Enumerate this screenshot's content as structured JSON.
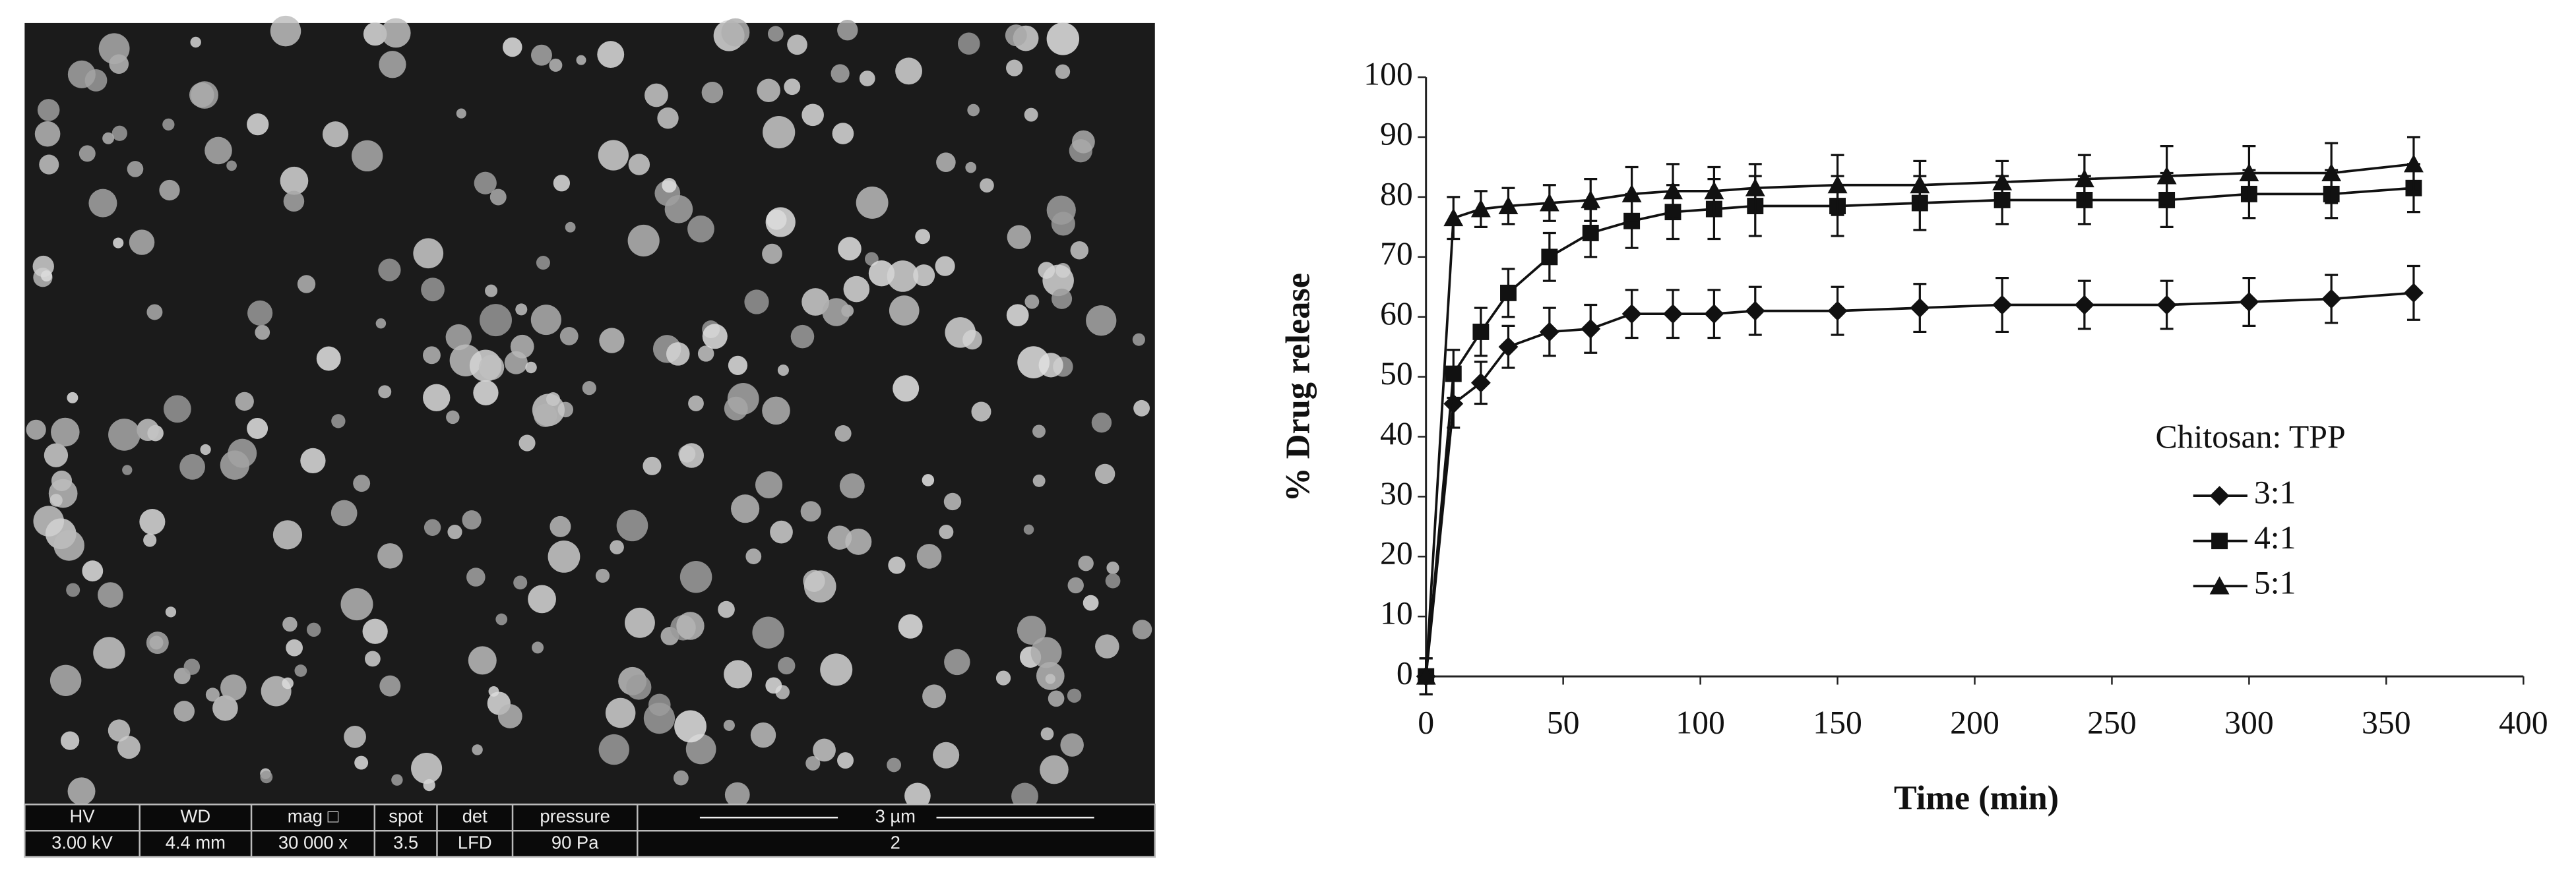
{
  "sem_info": {
    "columns": [
      {
        "header": "HV",
        "value": "3.00 kV"
      },
      {
        "header": "WD",
        "value": "4.4 mm"
      },
      {
        "header": "mag □",
        "value": "30 000 x"
      },
      {
        "header": "spot",
        "value": "3.5"
      },
      {
        "header": "det",
        "value": "LFD"
      },
      {
        "header": "pressure",
        "value": "90 Pa"
      }
    ],
    "scale_bar": "3 µm",
    "label": "2"
  },
  "chart_data": {
    "type": "line",
    "x_label": "Time (min)",
    "y_label": "% Drug release",
    "x": [
      0,
      10,
      20,
      30,
      45,
      60,
      75,
      90,
      105,
      120,
      150,
      180,
      210,
      240,
      270,
      300,
      330,
      360
    ],
    "series": [
      {
        "name": "3:1",
        "color": "#111111",
        "marker": "diamond",
        "values": [
          0,
          45.5,
          49,
          55,
          57.5,
          58,
          60.5,
          60.5,
          60.5,
          61,
          61,
          61.5,
          62,
          62,
          62,
          62.5,
          63,
          64
        ],
        "errors": [
          3,
          4,
          3.5,
          3.5,
          4,
          4,
          4,
          4,
          4,
          4,
          4,
          4,
          4.5,
          4,
          4,
          4,
          4,
          4.5
        ]
      },
      {
        "name": "4:1",
        "color": "#111111",
        "marker": "square",
        "values": [
          0,
          50.5,
          57.5,
          64,
          70,
          74,
          76,
          77.5,
          78,
          78.5,
          78.5,
          79,
          79.5,
          79.5,
          79.5,
          80.5,
          80.5,
          81.5
        ],
        "errors": [
          3,
          4,
          4,
          4,
          4,
          4,
          4.5,
          4.5,
          5,
          5,
          5,
          4.5,
          4,
          4,
          4.5,
          4,
          4,
          4
        ]
      },
      {
        "name": "5:1",
        "color": "#111111",
        "marker": "triangle",
        "values": [
          0,
          76.5,
          78,
          78.5,
          79,
          79.5,
          80.5,
          81,
          81,
          81.5,
          82,
          82,
          82.5,
          83,
          83.5,
          84,
          84,
          85.5
        ],
        "errors": [
          3,
          3.5,
          3,
          3,
          3,
          3.5,
          4.5,
          4.5,
          4,
          4,
          5,
          4,
          3.5,
          4,
          5,
          4.5,
          5,
          4.5
        ]
      }
    ],
    "legend_title": "Chitosan: TPP",
    "legend_position": "right",
    "xlim": [
      0,
      400
    ],
    "xticks": [
      0,
      50,
      100,
      150,
      200,
      250,
      300,
      350,
      400
    ],
    "ylim": [
      0,
      100
    ],
    "yticks": [
      0,
      10,
      20,
      30,
      40,
      50,
      60,
      70,
      80,
      90,
      100
    ],
    "grid": false
  }
}
